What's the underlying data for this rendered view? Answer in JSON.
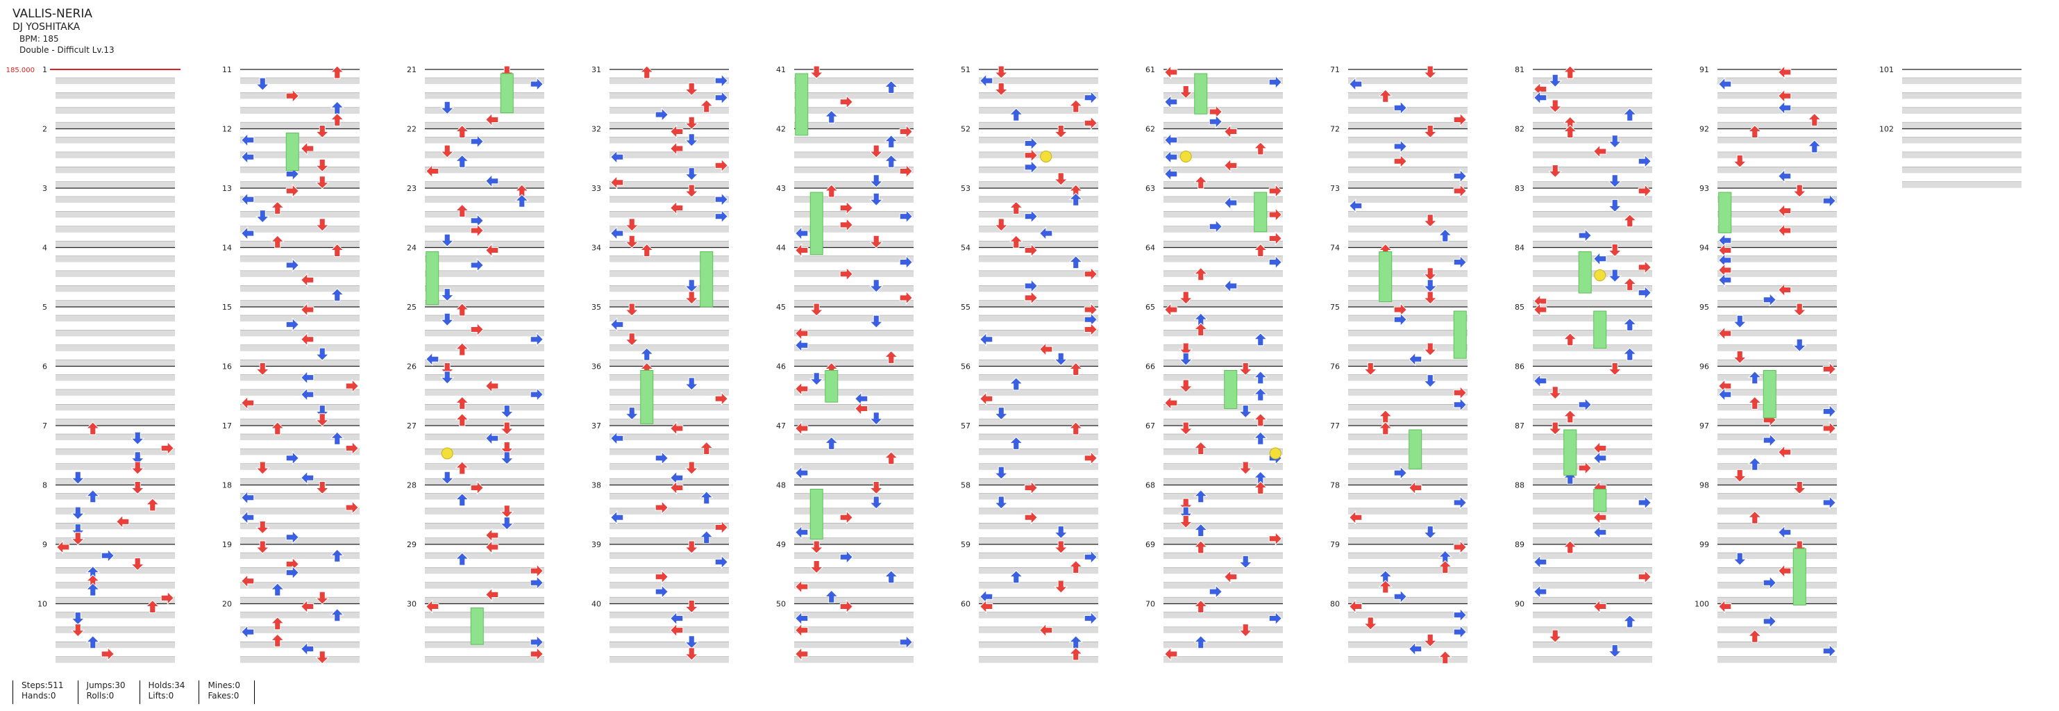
{
  "song": {
    "title": "VALLIS-NERIA",
    "artist": "DJ YOSHITAKA",
    "bpm_label": "BPM: 185",
    "difficulty_label": "Double - Difficult  Lv.13"
  },
  "chart": {
    "bpm_marker": "185.000",
    "measure_numbers": [
      "1",
      "2",
      "3",
      "4",
      "5",
      "6",
      "7",
      "8",
      "9",
      "10",
      "11",
      "12",
      "13",
      "14",
      "15",
      "16",
      "17",
      "18",
      "19",
      "20",
      "21",
      "22",
      "23",
      "24",
      "25",
      "26",
      "27",
      "28",
      "29",
      "30",
      "31",
      "32",
      "33",
      "34",
      "35",
      "36",
      "37",
      "38",
      "39",
      "40",
      "41",
      "42",
      "43",
      "44",
      "45",
      "46",
      "47",
      "48",
      "49",
      "50",
      "51",
      "52",
      "53",
      "54",
      "55",
      "56",
      "57",
      "58",
      "59",
      "60",
      "61",
      "62",
      "63",
      "64",
      "65",
      "66",
      "67",
      "68",
      "69",
      "70",
      "71",
      "72",
      "73",
      "74",
      "75",
      "76",
      "77",
      "78",
      "79",
      "80",
      "81",
      "82",
      "83",
      "84",
      "85",
      "86",
      "87",
      "88",
      "89",
      "90",
      "91",
      "92",
      "93",
      "94",
      "95",
      "96",
      "97",
      "98",
      "99",
      "100",
      "101",
      "102"
    ],
    "colors": {
      "quarter_note": "#e8403a",
      "eighth_note": "#3a5fe0",
      "mine_note": "#f2df3a",
      "hold_body": "#8fe28c",
      "measure_line": "#222222",
      "beat_band": "#dcdcdc",
      "bpm_marker": "#e02020"
    },
    "note_types": [
      "quarter-arrow",
      "eighth-arrow",
      "mine",
      "hold"
    ]
  },
  "stats": {
    "steps": "Steps:511",
    "hands": "Hands:0",
    "jumps": "Jumps:30",
    "rolls": "Rolls:0",
    "holds": "Holds:34",
    "lifts": "Lifts:0",
    "mines": "Mines:0",
    "fakes": "Fakes:0"
  }
}
